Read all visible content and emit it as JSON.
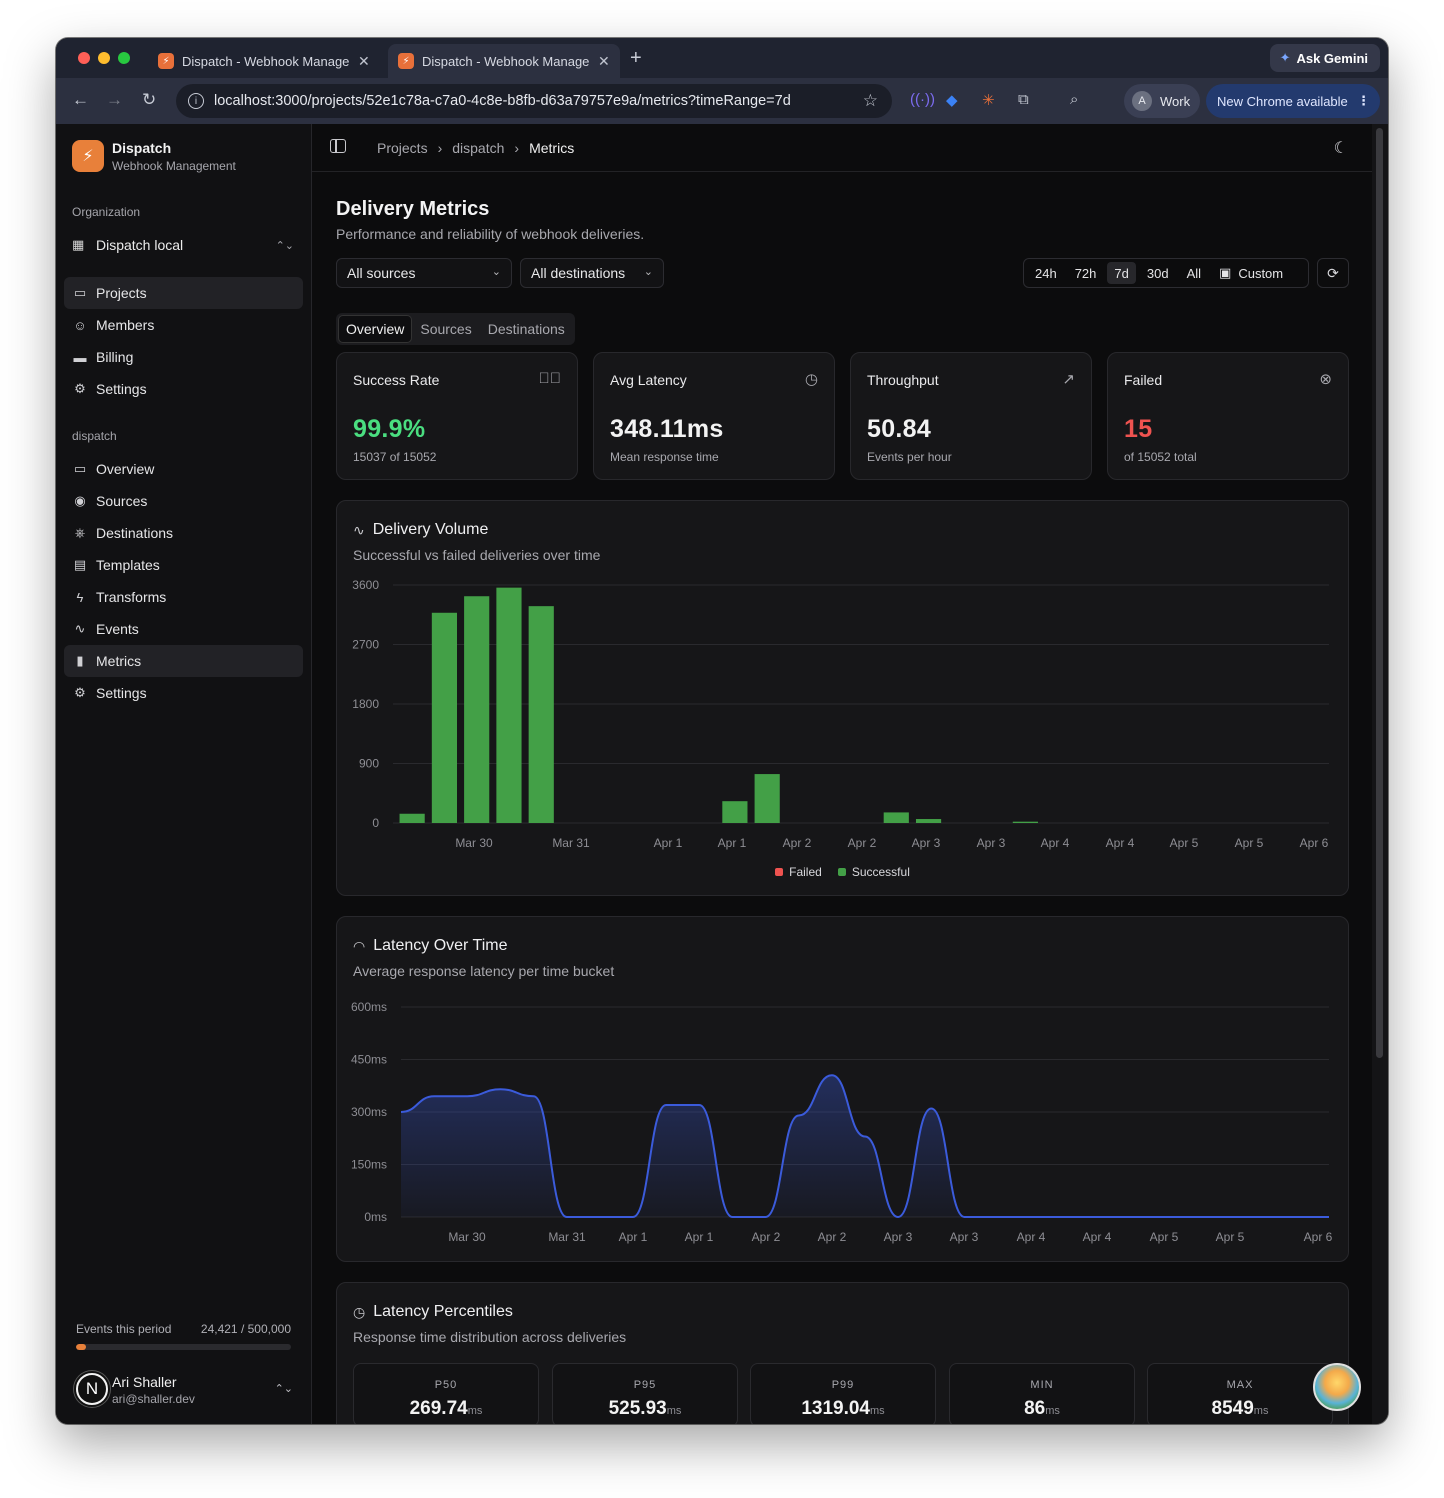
{
  "browser": {
    "tabs": [
      {
        "title": "Dispatch - Webhook Management"
      },
      {
        "title": "Dispatch - Webhook Management"
      }
    ],
    "new_tab": "+",
    "gemini_label": "Ask Gemini",
    "url": "localhost:3000/projects/52e1c78a-c7a0-4c8e-b8fb-d63a79757e9a/metrics?timeRange=7d",
    "profile_initial": "A",
    "profile_label": "Work",
    "update_label": "New Chrome available"
  },
  "sidebar": {
    "brand": {
      "name": "Dispatch",
      "subtitle": "Webhook Management"
    },
    "org_section_label": "Organization",
    "org_name": "Dispatch local",
    "org_items": [
      {
        "label": "Projects",
        "icon": "folder-icon"
      },
      {
        "label": "Members",
        "icon": "users-icon"
      },
      {
        "label": "Billing",
        "icon": "credit-card-icon"
      },
      {
        "label": "Settings",
        "icon": "gear-icon"
      }
    ],
    "project_section_label": "dispatch",
    "project_items": [
      {
        "label": "Overview",
        "icon": "folder-icon"
      },
      {
        "label": "Sources",
        "icon": "radio-icon"
      },
      {
        "label": "Destinations",
        "icon": "webhook-icon"
      },
      {
        "label": "Templates",
        "icon": "file-icon"
      },
      {
        "label": "Transforms",
        "icon": "bolt-icon"
      },
      {
        "label": "Events",
        "icon": "activity-icon"
      },
      {
        "label": "Metrics",
        "icon": "bar-chart-icon"
      },
      {
        "label": "Settings",
        "icon": "gear-icon"
      }
    ],
    "usage": {
      "label": "Events this period",
      "value": "24,421 / 500,000",
      "fraction": 0.0488
    },
    "user": {
      "initial": "N",
      "name": "Ari Shaller",
      "email": "ari@shaller.dev"
    }
  },
  "header": {
    "breadcrumbs": [
      "Projects",
      "dispatch",
      "Metrics"
    ]
  },
  "page": {
    "title": "Delivery Metrics",
    "subtitle": "Performance and reliability of webhook deliveries.",
    "source_filter": "All sources",
    "destination_filter": "All destinations",
    "time_ranges": [
      "24h",
      "72h",
      "7d",
      "30d",
      "All"
    ],
    "active_range": "7d",
    "custom_label": "Custom",
    "tabs": [
      "Overview",
      "Sources",
      "Destinations"
    ],
    "active_tab": "Overview"
  },
  "stats": [
    {
      "label": "Success Rate",
      "value": "99.9%",
      "note": "15037 of 15052",
      "icon": "check-circle-icon",
      "color": "#4ade80"
    },
    {
      "label": "Avg Latency",
      "value": "348.11ms",
      "note": "Mean response time",
      "icon": "clock-icon",
      "color": "#f3f3f3"
    },
    {
      "label": "Throughput",
      "value": "50.84",
      "note": "Events per hour",
      "icon": "trending-up-icon",
      "color": "#f3f3f3"
    },
    {
      "label": "Failed",
      "value": "15",
      "note": "of 15052 total",
      "icon": "x-circle-icon",
      "color": "#ef5350"
    }
  ],
  "volume_card": {
    "title": "Delivery Volume",
    "subtitle": "Successful vs failed deliveries over time"
  },
  "latency_card": {
    "title": "Latency Over Time",
    "subtitle": "Average response latency per time bucket"
  },
  "percentile_card": {
    "title": "Latency Percentiles",
    "subtitle": "Response time distribution across deliveries",
    "items": [
      {
        "label": "P50",
        "value": "269.74",
        "unit": "ms"
      },
      {
        "label": "P95",
        "value": "525.93",
        "unit": "ms"
      },
      {
        "label": "P99",
        "value": "1319.04",
        "unit": "ms"
      },
      {
        "label": "MIN",
        "value": "86",
        "unit": "ms"
      },
      {
        "label": "MAX",
        "value": "8549",
        "unit": "ms"
      }
    ]
  },
  "chart_data": [
    {
      "type": "bar",
      "title": "Delivery Volume",
      "y_ticks": [
        "0",
        "900",
        "1800",
        "2700",
        "3600"
      ],
      "ylim": [
        0,
        3600
      ],
      "x_ticks": [
        "Mar 30",
        "Mar 31",
        "Apr 1",
        "Apr 1",
        "Apr 2",
        "Apr 2",
        "Apr 3",
        "Apr 3",
        "Apr 4",
        "Apr 4",
        "Apr 5",
        "Apr 5",
        "Apr 6"
      ],
      "buckets": 29,
      "series": [
        {
          "name": "Failed",
          "color": "#ef5350",
          "values": [
            0,
            0,
            0,
            0,
            0,
            0,
            0,
            0,
            0,
            0,
            0,
            0,
            0,
            0,
            0,
            0,
            0,
            0,
            0,
            0,
            0,
            0,
            0,
            0,
            0,
            0,
            0,
            0,
            0
          ]
        },
        {
          "name": "Successful",
          "color": "#43a047",
          "values": [
            140,
            3180,
            3430,
            3560,
            3280,
            0,
            0,
            0,
            0,
            0,
            330,
            740,
            0,
            0,
            0,
            0,
            0,
            0,
            0,
            0,
            0,
            0,
            0,
            0,
            0,
            0,
            0,
            0,
            0
          ]
        }
      ],
      "legend": "bottom-center",
      "grid": true
    },
    {
      "type": "area",
      "title": "Latency Over Time",
      "y_ticks": [
        "0ms",
        "150ms",
        "300ms",
        "450ms",
        "600ms"
      ],
      "ylim": [
        0,
        600
      ],
      "x_ticks": [
        "Mar 30",
        "Mar 31",
        "Apr 1",
        "Apr 1",
        "Apr 2",
        "Apr 2",
        "Apr 3",
        "Apr 3",
        "Apr 4",
        "Apr 4",
        "Apr 5",
        "Apr 5",
        "Apr 6"
      ],
      "series": [
        {
          "name": "Latency",
          "color": "#3b5bdb",
          "values": [
            300,
            345,
            345,
            365,
            345,
            0,
            0,
            0,
            320,
            320,
            0,
            0,
            290,
            405,
            230,
            0,
            310,
            0,
            0,
            0,
            0,
            0,
            0,
            0,
            0,
            0,
            0,
            0,
            0
          ]
        }
      ],
      "grid": true
    }
  ]
}
